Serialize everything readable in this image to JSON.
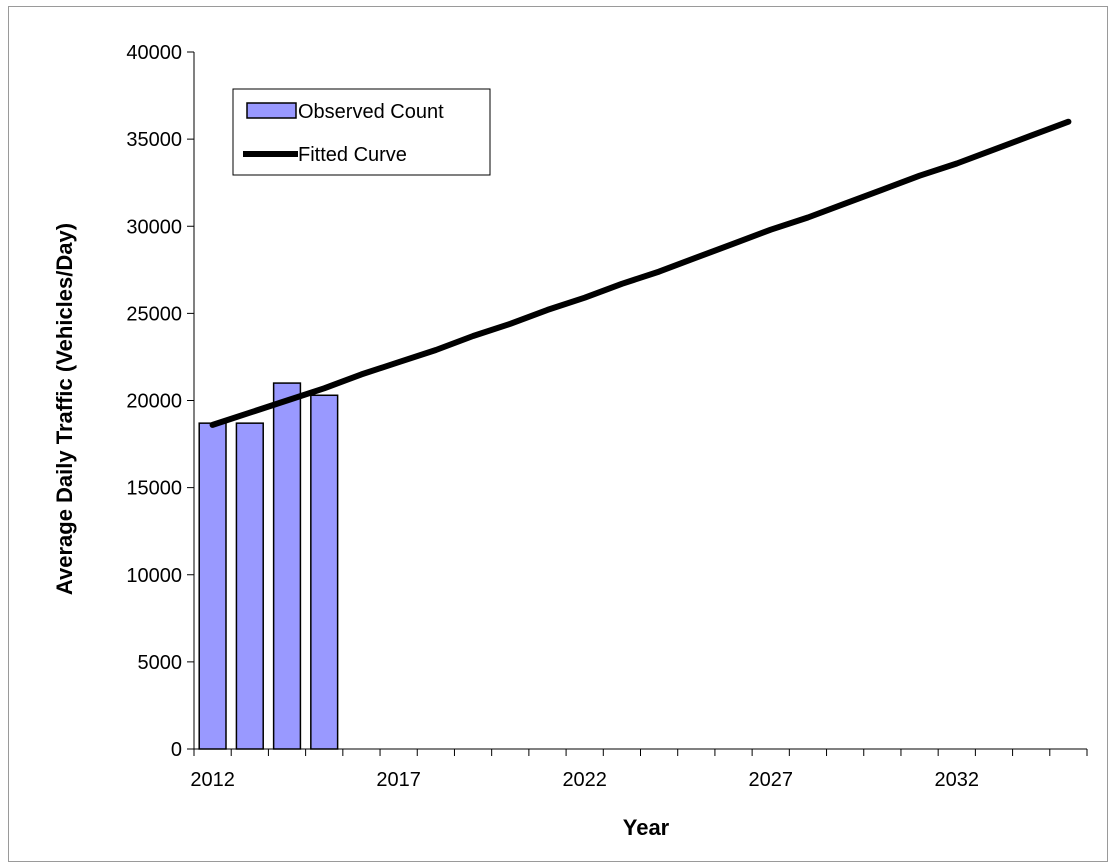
{
  "chart_data": {
    "type": "bar",
    "title": "",
    "xlabel": "Year",
    "ylabel": "Average Daily Traffic (Vehicles/Day)",
    "xlim": [
      2011.5,
      2035.5
    ],
    "ylim": [
      0,
      40000
    ],
    "y_ticks": [
      0,
      5000,
      10000,
      15000,
      20000,
      25000,
      30000,
      35000,
      40000
    ],
    "x_tick_labels": [
      "2012",
      "2017",
      "2022",
      "2027",
      "2032"
    ],
    "grid": false,
    "legend_position": "top-left",
    "series": [
      {
        "name": "Observed Count",
        "type": "bar",
        "color": "#9999ff",
        "x": [
          2012,
          2013,
          2014,
          2015
        ],
        "values": [
          18700,
          18700,
          21000,
          20300
        ]
      },
      {
        "name": "Fitted Curve",
        "type": "line",
        "color": "#000000",
        "x": [
          2012,
          2013,
          2014,
          2015,
          2016,
          2017,
          2018,
          2019,
          2020,
          2021,
          2022,
          2023,
          2024,
          2025,
          2026,
          2027,
          2028,
          2029,
          2030,
          2031,
          2032,
          2033,
          2034,
          2035
        ],
        "values": [
          18600,
          19300,
          20000,
          20700,
          21500,
          22200,
          22900,
          23700,
          24400,
          25200,
          25900,
          26700,
          27400,
          28200,
          29000,
          29800,
          30500,
          31300,
          32100,
          32900,
          33600,
          34400,
          35200,
          36000
        ]
      }
    ]
  }
}
